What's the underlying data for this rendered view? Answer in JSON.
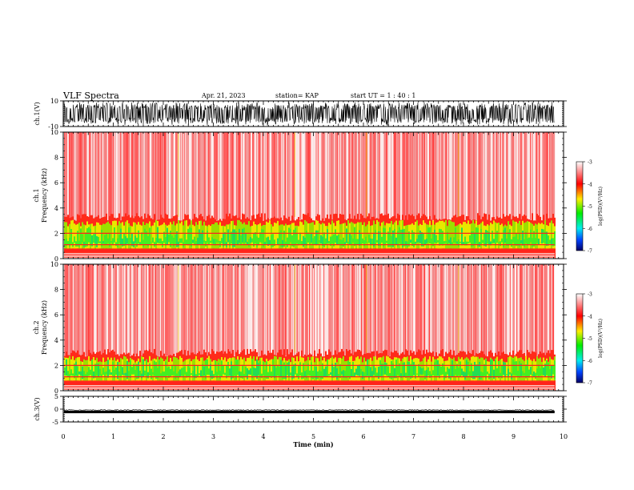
{
  "header": {
    "title": "VLF Spectra",
    "date": "Apr. 21, 2023",
    "station": "station= KAP",
    "start": "start  UT =   1 : 40 : 1"
  },
  "chart_data": [
    {
      "type": "line",
      "panel": "ch1-waveform",
      "ylabel": "ch.1(V)",
      "ylim": [
        -10,
        10
      ],
      "yticks": [
        "10",
        "-10"
      ],
      "xlim": [
        0,
        10
      ],
      "data_extent_min": 9.82,
      "signal": "dense noise, amplitude ~ +/-9 V"
    },
    {
      "type": "heatmap",
      "panel": "ch1-spectrogram",
      "ylabel": "ch.1\nFrequency (kHz)",
      "ylim": [
        0,
        10
      ],
      "yticks": [
        "0",
        "2",
        "4",
        "6",
        "8",
        "10"
      ],
      "xlim": [
        0,
        10
      ],
      "data_extent_min": 9.82,
      "colorbar": {
        "label": "log(PSD)(V²/Hz)",
        "range": [
          -7,
          -3
        ],
        "ticks": [
          "-3",
          "-4",
          "-5",
          "-6",
          "-7"
        ],
        "colormap": "jet-like (blue-cyan-green-yellow-red-white)"
      },
      "bands_khz": {
        "intense": [
          0,
          3.3
        ],
        "stripes_khz": [
          0.3,
          0.6,
          1.1,
          2.0
        ]
      }
    },
    {
      "type": "heatmap",
      "panel": "ch2-spectrogram",
      "ylabel": "ch.2\nFrequency (kHz)",
      "ylim": [
        0,
        10
      ],
      "yticks": [
        "0",
        "2",
        "4",
        "6",
        "8",
        "10"
      ],
      "xlim": [
        0,
        10
      ],
      "data_extent_min": 9.82,
      "colorbar": {
        "label": "log(PSD)(V²/Hz)",
        "range": [
          -7,
          -3
        ],
        "ticks": [
          "-3",
          "-4",
          "-5",
          "-6",
          "-7"
        ],
        "colormap": "jet-like (blue-cyan-green-yellow-red-white)"
      },
      "bands_khz": {
        "intense": [
          0,
          3.0
        ],
        "stripes_khz": [
          0.3,
          0.6,
          1.1,
          2.0
        ]
      }
    },
    {
      "type": "line",
      "panel": "ch3-waveform",
      "ylabel": "ch.3(V)",
      "ylim": [
        -5,
        5
      ],
      "yticks": [
        "5",
        "0",
        "-5"
      ],
      "xlim": [
        0,
        10
      ],
      "data_extent_min": 9.82,
      "signal": "thick band around -1 V"
    }
  ],
  "xaxis": {
    "label": "Time (min)",
    "ticks": [
      "0",
      "1",
      "2",
      "3",
      "4",
      "5",
      "6",
      "7",
      "8",
      "9",
      "10"
    ]
  }
}
